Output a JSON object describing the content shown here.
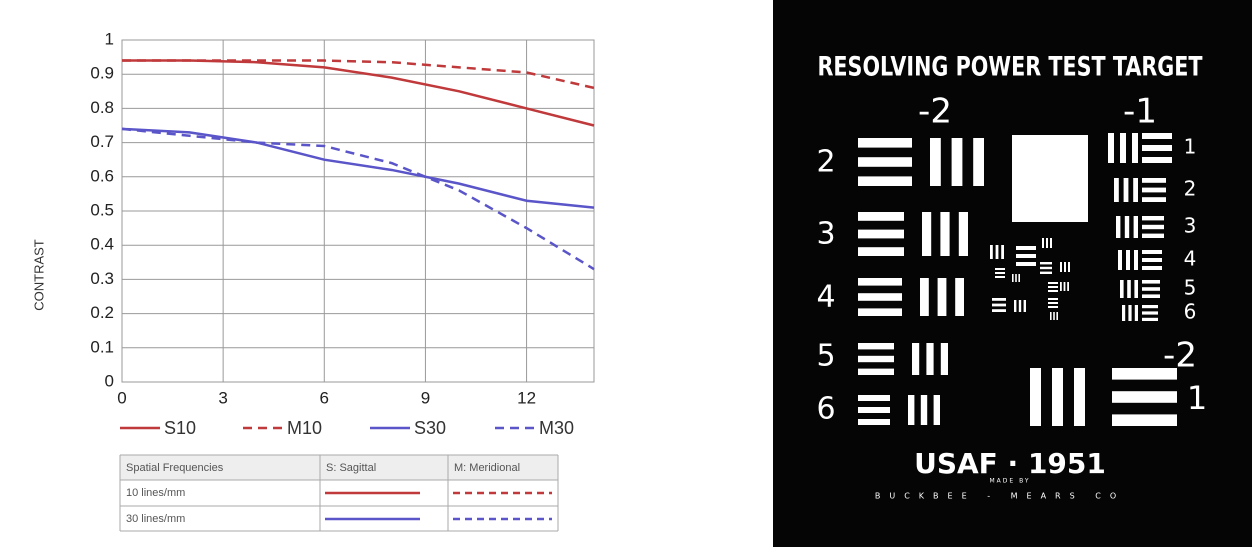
{
  "chart_data": {
    "type": "line",
    "y_label": "CONTRAST",
    "x": [
      0,
      2,
      4,
      6,
      8,
      10,
      12,
      14
    ],
    "xlim": [
      0,
      14
    ],
    "xticks": [
      0,
      3,
      6,
      9,
      12
    ],
    "ylim": [
      0,
      1
    ],
    "yticks": [
      0,
      0.1,
      0.2,
      0.3,
      0.4,
      0.5,
      0.6,
      0.7,
      0.8,
      0.9,
      1
    ],
    "grid": true,
    "series": [
      {
        "name": "S10",
        "color": "#c0393b",
        "dashed": false,
        "values": [
          0.94,
          0.94,
          0.935,
          0.92,
          0.89,
          0.85,
          0.8,
          0.75
        ]
      },
      {
        "name": "M10",
        "color": "#c0393b",
        "dashed": true,
        "values": [
          0.94,
          0.94,
          0.94,
          0.94,
          0.935,
          0.92,
          0.905,
          0.86
        ]
      },
      {
        "name": "S30",
        "color": "#5a55c8",
        "dashed": false,
        "values": [
          0.74,
          0.73,
          0.7,
          0.65,
          0.62,
          0.58,
          0.53,
          0.51
        ]
      },
      {
        "name": "M30",
        "color": "#5a55c8",
        "dashed": true,
        "values": [
          0.74,
          0.72,
          0.7,
          0.69,
          0.64,
          0.56,
          0.45,
          0.33
        ]
      }
    ]
  },
  "table": {
    "header": [
      "Spatial Frequencies",
      "S: Sagittal",
      "M: Meridional"
    ],
    "rows": [
      "10 lines/mm",
      "30 lines/mm"
    ]
  },
  "target": {
    "title": "RESOLVING POWER TEST TARGET",
    "group_left": "-2",
    "group_right": "-1",
    "left_elements": [
      "2",
      "3",
      "4",
      "5",
      "6"
    ],
    "right_elements": [
      "1",
      "2",
      "3",
      "4",
      "5",
      "6"
    ],
    "bottom_group": "-2",
    "bottom_element": "1",
    "name": "USAF · 1951",
    "made_by": "MADE BY",
    "maker": "BUCKBEE - MEARS CO"
  }
}
